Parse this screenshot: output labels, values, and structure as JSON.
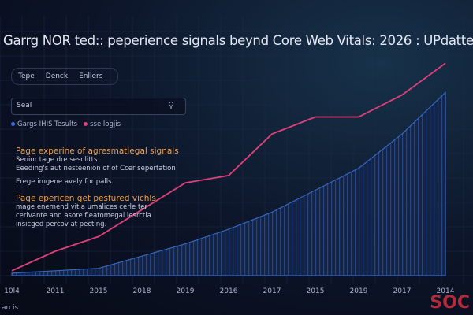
{
  "header": {
    "title": "Garrg NOR ted:: peperience signals beynd Core Web Vitals: 2026 : UPdatte"
  },
  "tabs": [
    "Tepe",
    "Denck",
    "Enllers"
  ],
  "search": {
    "placeholder": "Seal"
  },
  "sections": [
    {
      "heading": "Page experine of agresmatiegal signals",
      "lines": [
        "Senior tage dre sesolitts",
        "Eeeding's aut nesteenion of of Ccer sepertation",
        "Erege imgene avely for palls."
      ]
    },
    {
      "heading": "Page epericen get pesfured vichls",
      "lines": [
        "mage enemend vitla umalices cerle ter",
        "cerivante and asore fleatomegal lesrctia",
        "insicged percov at pecting."
      ]
    }
  ],
  "footer": {
    "left": "arcis",
    "watermark": "SOC"
  },
  "chart_data": {
    "type": "line",
    "categories": [
      "10l4",
      "2011",
      "2015",
      "2018",
      "2019",
      "2016",
      "2017",
      "2015",
      "2019",
      "2017",
      "2014"
    ],
    "ylim": [
      0,
      100
    ],
    "series": [
      {
        "name": "Gargs IHIS Tesults",
        "color": "#3a6fd0",
        "fill": true,
        "values": [
          1,
          2,
          3,
          8,
          13,
          19,
          26,
          35,
          44,
          58,
          75
        ]
      },
      {
        "name": "sse logjis",
        "color": "#e0407a",
        "fill": false,
        "values": [
          2,
          10,
          16,
          27,
          38,
          41,
          58,
          65,
          65,
          74,
          87
        ]
      }
    ]
  }
}
